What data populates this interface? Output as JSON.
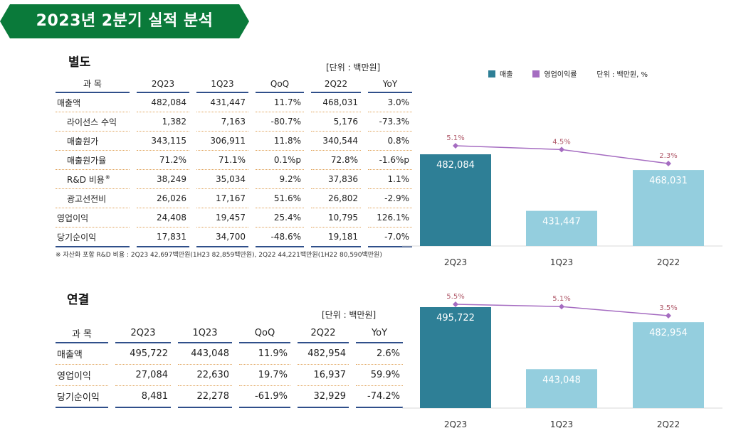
{
  "page": {
    "title": "2023년 2분기 실적 분석"
  },
  "colors": {
    "banner": "#0a7a3a",
    "sales_dark": "#2e7f96",
    "sales_light": "#94cede",
    "margin_line": "#a56cc1",
    "margin_label": "#b05a6a"
  },
  "separate": {
    "title": "별도",
    "unit": "[단위 : 백만원]",
    "headers": [
      "과 목",
      "2Q23",
      "1Q23",
      "QoQ",
      "2Q22",
      "YoY"
    ],
    "rows": [
      [
        "매출액",
        "482,084",
        "431,447",
        "11.7%",
        "468,031",
        "3.0%"
      ],
      [
        "라이선스 수익",
        "1,382",
        "7,163",
        "-80.7%",
        "5,176",
        "-73.3%"
      ],
      [
        "매출원가",
        "343,115",
        "306,911",
        "11.8%",
        "340,544",
        "0.8%"
      ],
      [
        "매출원가율",
        "71.2%",
        "71.1%",
        "0.1%p",
        "72.8%",
        "-1.6%p"
      ],
      [
        "R&D 비용",
        "38,249",
        "35,034",
        "9.2%",
        "37,836",
        "1.1%"
      ],
      [
        "광고선전비",
        "26,026",
        "17,167",
        "51.6%",
        "26,802",
        "-2.9%"
      ],
      [
        "영업이익",
        "24,408",
        "19,457",
        "25.4%",
        "10,795",
        "126.1%"
      ],
      [
        "당기순이익",
        "17,831",
        "34,700",
        "-48.6%",
        "19,181",
        "-7.0%"
      ]
    ],
    "rd_mark": "※",
    "footnote": "※ 자산화 포함 R&D 비용 : 2Q23 42,697백만원(1H23 82,859백만원), 2Q22 44,221백만원(1H22 80,590백만원)"
  },
  "consolidated": {
    "title": "연결",
    "unit": "[단위 : 백만원]",
    "headers": [
      "과 목",
      "2Q23",
      "1Q23",
      "QoQ",
      "2Q22",
      "YoY"
    ],
    "rows": [
      [
        "매출액",
        "495,722",
        "443,048",
        "11.9%",
        "482,954",
        "2.6%"
      ],
      [
        "영업이익",
        "27,084",
        "22,630",
        "19.7%",
        "16,937",
        "59.9%"
      ],
      [
        "당기순이익",
        "8,481",
        "22,278",
        "-61.9%",
        "32,929",
        "-74.2%"
      ]
    ]
  },
  "legend": {
    "sales": "매출",
    "margin": "영업이익률",
    "unit": "단위 : 백만원, %"
  },
  "chart_data": [
    {
      "type": "bar",
      "categories": [
        "2Q23",
        "1Q23",
        "2Q22"
      ],
      "series": [
        {
          "name": "매출",
          "values": [
            482084,
            431447,
            468031
          ]
        },
        {
          "name": "영업이익률",
          "type": "line",
          "values": [
            5.1,
            4.5,
            2.3
          ]
        }
      ],
      "value_labels": [
        "482,084",
        "431,447",
        "468,031"
      ],
      "line_labels": [
        "5.1%",
        "4.5%",
        "2.3%"
      ]
    },
    {
      "type": "bar",
      "categories": [
        "2Q23",
        "1Q23",
        "2Q22"
      ],
      "series": [
        {
          "name": "매출",
          "values": [
            495722,
            443048,
            482954
          ]
        },
        {
          "name": "영업이익률",
          "type": "line",
          "values": [
            5.5,
            5.1,
            3.5
          ]
        }
      ],
      "value_labels": [
        "495,722",
        "443,048",
        "482,954"
      ],
      "line_labels": [
        "5.5%",
        "5.1%",
        "3.5%"
      ]
    }
  ]
}
